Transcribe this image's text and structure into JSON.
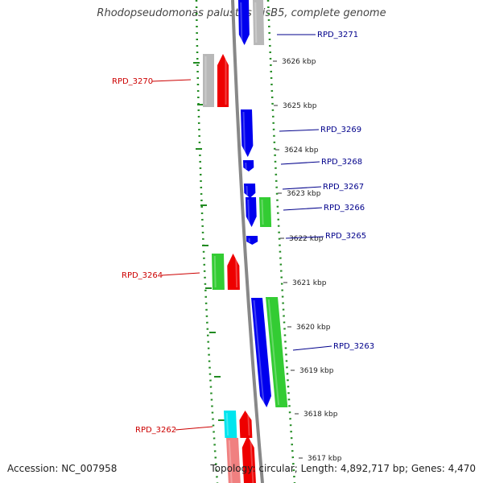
{
  "title": "Rhodopseudomonas palustris BisB5, complete genome",
  "footer": {
    "accession": "Accession: NC_007958",
    "summary": "Topology: circular; Length: 4,892,717 bp; Genes: 4,470"
  },
  "colors": {
    "blue": "#0000ee",
    "red": "#ee0000",
    "green": "#33cc33",
    "gray": "#b8b8b8",
    "cyan": "#00e5ee",
    "pink": "#f08080",
    "backbone": "#888888",
    "dots": "#228b22",
    "label_forward": "#00008b",
    "label_reverse": "#cc0000"
  },
  "ticks": [
    {
      "label": "3626 kbp"
    },
    {
      "label": "3625 kbp"
    },
    {
      "label": "3624 kbp"
    },
    {
      "label": "3623 kbp"
    },
    {
      "label": "3622 kbp"
    },
    {
      "label": "3621 kbp"
    },
    {
      "label": "3620 kbp"
    },
    {
      "label": "3619 kbp"
    },
    {
      "label": "3618 kbp"
    },
    {
      "label": "3617 kbp"
    }
  ],
  "gene_labels": [
    {
      "label": "RPD_3271",
      "strand": "forward"
    },
    {
      "label": "RPD_3270",
      "strand": "reverse"
    },
    {
      "label": "RPD_3269",
      "strand": "forward"
    },
    {
      "label": "RPD_3268",
      "strand": "forward"
    },
    {
      "label": "RPD_3267",
      "strand": "forward"
    },
    {
      "label": "RPD_3266",
      "strand": "forward"
    },
    {
      "label": "RPD_3265",
      "strand": "forward"
    },
    {
      "label": "RPD_3264",
      "strand": "reverse"
    },
    {
      "label": "RPD_3263",
      "strand": "forward"
    },
    {
      "label": "RPD_3262",
      "strand": "reverse"
    }
  ]
}
